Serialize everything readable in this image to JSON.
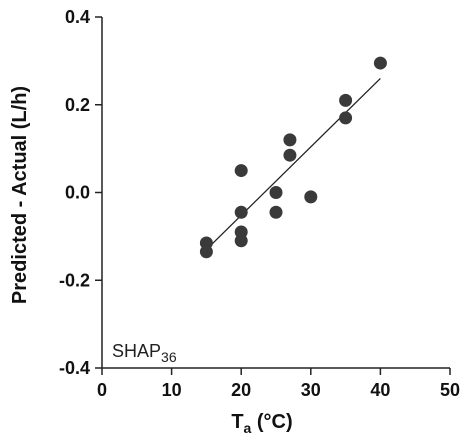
{
  "chart_data": {
    "type": "scatter",
    "title": "",
    "xlabel": "T",
    "xlabel_sub": "a",
    "xlabel_suffix": " (°C)",
    "ylabel": "Predicted - Actual (L/h)",
    "xlim": [
      0,
      50
    ],
    "ylim": [
      -0.4,
      0.4
    ],
    "xticks": [
      0,
      10,
      20,
      30,
      40,
      50
    ],
    "xtick_labels": [
      "0",
      "10",
      "20",
      "30",
      "40",
      "50"
    ],
    "yticks": [
      -0.4,
      -0.2,
      0.0,
      0.2,
      0.4
    ],
    "ytick_labels": [
      "-0.4",
      "-0.2",
      "0.0",
      "0.2",
      "0.4"
    ],
    "grid": false,
    "annotation": {
      "text": "SHAP",
      "sub": "36"
    },
    "points": [
      {
        "x": 15,
        "y": -0.115
      },
      {
        "x": 15,
        "y": -0.135
      },
      {
        "x": 20,
        "y": 0.05
      },
      {
        "x": 20,
        "y": -0.045
      },
      {
        "x": 20,
        "y": -0.09
      },
      {
        "x": 20,
        "y": -0.11
      },
      {
        "x": 25,
        "y": 0.0
      },
      {
        "x": 25,
        "y": -0.045
      },
      {
        "x": 27,
        "y": 0.12
      },
      {
        "x": 27,
        "y": 0.085
      },
      {
        "x": 30,
        "y": -0.01
      },
      {
        "x": 35,
        "y": 0.21
      },
      {
        "x": 35,
        "y": 0.17
      },
      {
        "x": 40,
        "y": 0.295
      }
    ],
    "regression_line": {
      "x": [
        15,
        40
      ],
      "y": [
        -0.13,
        0.26
      ]
    },
    "colors": {
      "points": "#3a3a3a",
      "line": "#222222",
      "axis": "#222222"
    }
  }
}
